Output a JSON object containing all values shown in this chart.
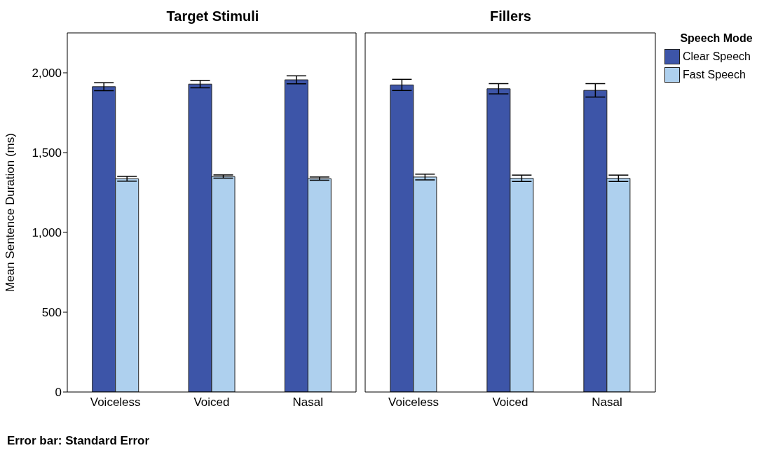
{
  "chart_data": [
    {
      "type": "bar",
      "title": "Target Stimuli",
      "ylabel": "Mean Sentence Duration (ms)",
      "categories": [
        "Voiceless",
        "Voiced",
        "Nasal"
      ],
      "series": [
        {
          "color": "#3d55a8",
          "values": [
            1913,
            1929,
            1956
          ],
          "errors": [
            25,
            23,
            25
          ]
        },
        {
          "color": "#aed0ee",
          "values": [
            1336,
            1350,
            1337
          ],
          "errors": [
            15,
            10,
            10
          ]
        }
      ],
      "ylim": [
        0,
        2250
      ],
      "yticks": [
        0,
        500,
        {
          "value": 1000,
          "label": "1,000"
        },
        {
          "value": 1500,
          "label": "1,500"
        },
        {
          "value": 2000,
          "label": "2,000"
        }
      ],
      "legend": false,
      "annotations": [
        "Error bar: Standard Error"
      ]
    },
    {
      "type": "bar",
      "title": "Fillers",
      "categories": [
        "Voiceless",
        "Voiced",
        "Nasal"
      ],
      "series": [
        {
          "name": "Clear Speech",
          "color": "#3d55a8",
          "values": [
            1924,
            1900,
            1890
          ],
          "errors": [
            35,
            32,
            42
          ]
        },
        {
          "name": "Fast Speech",
          "color": "#aed0ee",
          "values": [
            1347,
            1339,
            1339
          ],
          "errors": [
            18,
            20,
            20
          ]
        }
      ],
      "ylim": [
        0,
        2250
      ],
      "tick_labels": "x",
      "legend": "right",
      "legend_title": "Speech Mode"
    }
  ]
}
